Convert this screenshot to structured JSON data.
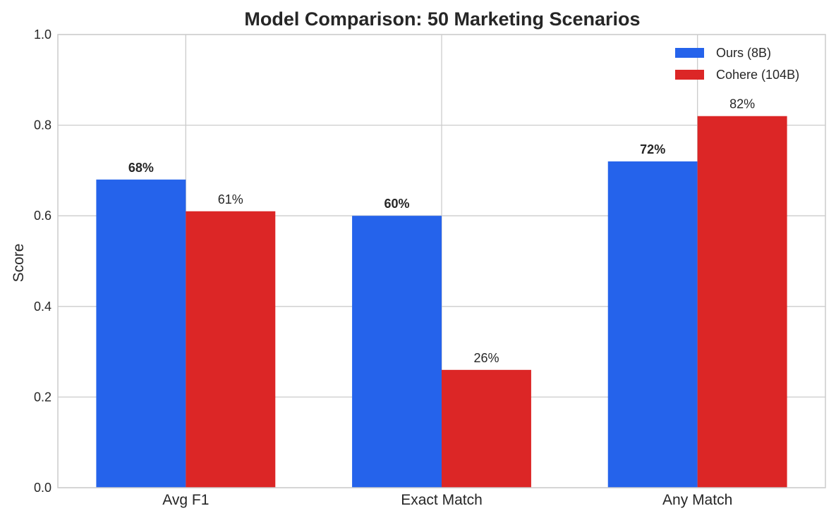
{
  "chart_data": {
    "type": "bar",
    "title": "Model Comparison: 50 Marketing Scenarios",
    "xlabel": "",
    "ylabel": "Score",
    "ylim": [
      0,
      1.0
    ],
    "yticks": [
      "0.0",
      "0.2",
      "0.4",
      "0.6",
      "0.8",
      "1.0"
    ],
    "categories": [
      "Avg F1",
      "Exact Match",
      "Any Match"
    ],
    "series": [
      {
        "name": "Ours (8B)",
        "color": "#2563eb",
        "values": [
          0.68,
          0.6,
          0.72
        ],
        "labels": [
          "68%",
          "60%",
          "72%"
        ],
        "label_weight": "bold"
      },
      {
        "name": "Cohere (104B)",
        "color": "#dc2626",
        "values": [
          0.61,
          0.26,
          0.82
        ],
        "labels": [
          "61%",
          "26%",
          "82%"
        ],
        "label_weight": "normal"
      }
    ],
    "grid": true,
    "legend_position": "top-right"
  }
}
